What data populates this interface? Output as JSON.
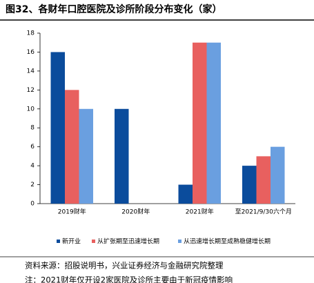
{
  "chart_data": {
    "type": "bar",
    "title": "图32、各财年口腔医院及诊所阶段分布变化（家）",
    "categories": [
      "2019财年",
      "2020财年",
      "2021财年",
      "至2021/9/30六个月"
    ],
    "series": [
      {
        "name": "新开业",
        "color": "#0b4c9c",
        "values": [
          16,
          10,
          2,
          4
        ]
      },
      {
        "name": "从扩张期至迅速增长期",
        "color": "#e8605f",
        "values": [
          12,
          null,
          17,
          5
        ]
      },
      {
        "name": "从迅速增长期至成熟稳健增长期",
        "color": "#6a9fe0",
        "values": [
          10,
          null,
          17,
          6
        ]
      }
    ],
    "ylim": [
      0,
      18
    ],
    "yticks": [
      0,
      2,
      4,
      6,
      8,
      10,
      12,
      14,
      16,
      18
    ],
    "grid": false,
    "legend": "bottom",
    "source": "资料来源：招股说明书，兴业证券经济与金融研究院整理",
    "note": "注：2021财年仅开设2家医院及诊所主要由于新冠疫情影响"
  }
}
